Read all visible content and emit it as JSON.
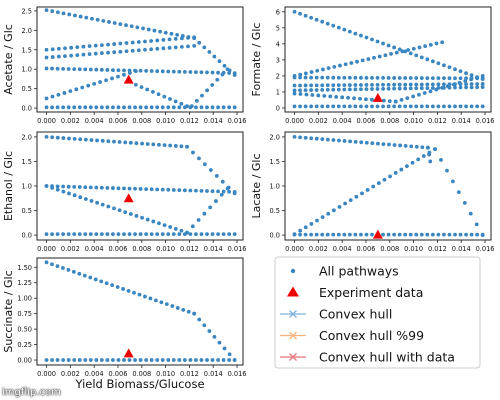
{
  "colors": {
    "pathways": "#3a86c0",
    "experiment": "#ee0000",
    "hull": "#7fb3dd",
    "hull99": "#f6b27c",
    "hull_data": "#e8787c"
  },
  "shared_xlabel": "Yield Biomass/Glucose",
  "watermark": "imgflip.com",
  "legend": {
    "entries": [
      {
        "label": "All pathways",
        "marker": "dot"
      },
      {
        "label": "Experiment data",
        "marker": "triangle"
      },
      {
        "label": "Convex hull",
        "marker": "x-line"
      },
      {
        "label": "Convex hull %99",
        "marker": "x-line"
      },
      {
        "label": "Convex hull with data",
        "marker": "x-line"
      }
    ]
  },
  "chart_data": [
    {
      "type": "scatter",
      "ylabel": "Acetate / Glc",
      "xlim": [
        -0.0008,
        0.0165
      ],
      "ylim": [
        -0.1,
        2.6
      ],
      "xticks": [
        "0.000",
        "0.002",
        "0.004",
        "0.006",
        "0.008",
        "0.010",
        "0.012",
        "0.014",
        "0.016"
      ],
      "yticks": [
        "0.0",
        "0.5",
        "1.0",
        "1.5",
        "2.0",
        "2.5"
      ],
      "experiment": {
        "x": 0.0069,
        "y": 0.72
      },
      "lines": [
        {
          "x0": 0.0,
          "y0": 2.52,
          "x1": 0.0124,
          "y1": 1.8,
          "n": 27
        },
        {
          "x0": 0.0,
          "y0": 1.5,
          "x1": 0.0124,
          "y1": 1.82,
          "n": 25
        },
        {
          "x0": 0.0,
          "y0": 1.3,
          "x1": 0.0124,
          "y1": 1.6,
          "n": 25
        },
        {
          "x0": 0.0,
          "y0": 1.02,
          "x1": 0.0158,
          "y1": 0.9,
          "n": 35
        },
        {
          "x0": 0.0,
          "y0": 0.25,
          "x1": 0.0075,
          "y1": 0.95,
          "n": 16
        },
        {
          "x0": 0.0075,
          "y0": 0.6,
          "x1": 0.0118,
          "y1": 0.05,
          "n": 10
        },
        {
          "x0": 0.0124,
          "y0": 1.8,
          "x1": 0.0158,
          "y1": 0.85,
          "n": 9
        },
        {
          "x0": 0.0122,
          "y0": 0.05,
          "x1": 0.0152,
          "y1": 1.0,
          "n": 8
        },
        {
          "x0": 0.0,
          "y0": 0.02,
          "x1": 0.0158,
          "y1": 0.02,
          "n": 35
        }
      ]
    },
    {
      "type": "scatter",
      "ylabel": "Formate / Glc",
      "xlim": [
        -0.0008,
        0.0165
      ],
      "ylim": [
        -0.25,
        6.3
      ],
      "xticks": [
        "0.000",
        "0.002",
        "0.004",
        "0.006",
        "0.008",
        "0.010",
        "0.012",
        "0.014",
        "0.016"
      ],
      "yticks": [
        "0",
        "1",
        "2",
        "3",
        "4",
        "5",
        "6"
      ],
      "experiment": {
        "x": 0.007,
        "y": 0.6
      },
      "lines": [
        {
          "x0": 0.0,
          "y0": 6.0,
          "x1": 0.0158,
          "y1": 1.8,
          "n": 35
        },
        {
          "x0": 0.0,
          "y0": 2.0,
          "x1": 0.0124,
          "y1": 4.1,
          "n": 27
        },
        {
          "x0": 0.0,
          "y0": 1.9,
          "x1": 0.0158,
          "y1": 1.85,
          "n": 35
        },
        {
          "x0": 0.0,
          "y0": 1.4,
          "x1": 0.0158,
          "y1": 1.5,
          "n": 35
        },
        {
          "x0": 0.0,
          "y0": 1.1,
          "x1": 0.0158,
          "y1": 1.3,
          "n": 35
        },
        {
          "x0": 0.0,
          "y0": 0.1,
          "x1": 0.0158,
          "y1": 0.1,
          "n": 35
        },
        {
          "x0": 0.0,
          "y0": 0.9,
          "x1": 0.0085,
          "y1": 0.4,
          "n": 18
        },
        {
          "x0": 0.0085,
          "y0": 0.4,
          "x1": 0.0158,
          "y1": 2.0,
          "n": 16
        }
      ]
    },
    {
      "type": "scatter",
      "ylabel": "Ethanol / Glc",
      "xlim": [
        -0.0008,
        0.0165
      ],
      "ylim": [
        -0.1,
        2.1
      ],
      "xticks": [
        "0.000",
        "0.002",
        "0.004",
        "0.006",
        "0.008",
        "0.010",
        "0.012",
        "0.014",
        "0.016"
      ],
      "yticks": [
        "0.0",
        "0.5",
        "1.0",
        "1.5",
        "2.0"
      ],
      "experiment": {
        "x": 0.0069,
        "y": 0.74
      },
      "lines": [
        {
          "x0": 0.0,
          "y0": 2.0,
          "x1": 0.0118,
          "y1": 1.8,
          "n": 26
        },
        {
          "x0": 0.0118,
          "y0": 1.8,
          "x1": 0.0158,
          "y1": 0.85,
          "n": 9
        },
        {
          "x0": 0.0,
          "y0": 1.0,
          "x1": 0.0158,
          "y1": 0.88,
          "n": 35
        },
        {
          "x0": 0.0,
          "y0": 1.0,
          "x1": 0.0118,
          "y1": 0.05,
          "n": 26
        },
        {
          "x0": 0.0118,
          "y0": 0.05,
          "x1": 0.0152,
          "y1": 0.95,
          "n": 8
        },
        {
          "x0": 0.0,
          "y0": 0.02,
          "x1": 0.0158,
          "y1": 0.02,
          "n": 35
        }
      ]
    },
    {
      "type": "scatter",
      "ylabel": "Lacate / Glc",
      "xlim": [
        -0.0008,
        0.0165
      ],
      "ylim": [
        -0.1,
        2.1
      ],
      "xticks": [
        "0.000",
        "0.002",
        "0.004",
        "0.006",
        "0.008",
        "0.010",
        "0.012",
        "0.014",
        "0.016"
      ],
      "yticks": [
        "0.0",
        "0.5",
        "1.0",
        "1.5",
        "2.0"
      ],
      "experiment": {
        "x": 0.007,
        "y": 0.0
      },
      "lines": [
        {
          "x0": 0.0,
          "y0": 2.0,
          "x1": 0.0112,
          "y1": 1.78,
          "n": 25
        },
        {
          "x0": 0.0112,
          "y0": 1.78,
          "x1": 0.0114,
          "y1": 1.5,
          "n": 3
        },
        {
          "x0": 0.0,
          "y0": 0.02,
          "x1": 0.0118,
          "y1": 1.75,
          "n": 26
        },
        {
          "x0": 0.0118,
          "y0": 1.75,
          "x1": 0.0158,
          "y1": 0.0,
          "n": 9
        },
        {
          "x0": 0.0,
          "y0": 0.01,
          "x1": 0.0158,
          "y1": 0.01,
          "n": 35
        }
      ]
    },
    {
      "type": "scatter",
      "ylabel": "Succinate / Glc",
      "xlim": [
        -0.0008,
        0.0165
      ],
      "ylim": [
        -0.08,
        1.65
      ],
      "xticks": [
        "0.000",
        "0.002",
        "0.004",
        "0.006",
        "0.008",
        "0.010",
        "0.012",
        "0.014",
        "0.016"
      ],
      "yticks": [
        "0.00",
        "0.25",
        "0.50",
        "0.75",
        "1.00",
        "1.25",
        "1.50"
      ],
      "experiment": {
        "x": 0.0069,
        "y": 0.1
      },
      "lines": [
        {
          "x0": 0.0,
          "y0": 1.58,
          "x1": 0.0124,
          "y1": 0.75,
          "n": 28
        },
        {
          "x0": 0.0124,
          "y0": 0.75,
          "x1": 0.0158,
          "y1": 0.0,
          "n": 9
        },
        {
          "x0": 0.0,
          "y0": 0.0,
          "x1": 0.0158,
          "y1": 0.0,
          "n": 35
        }
      ]
    }
  ]
}
